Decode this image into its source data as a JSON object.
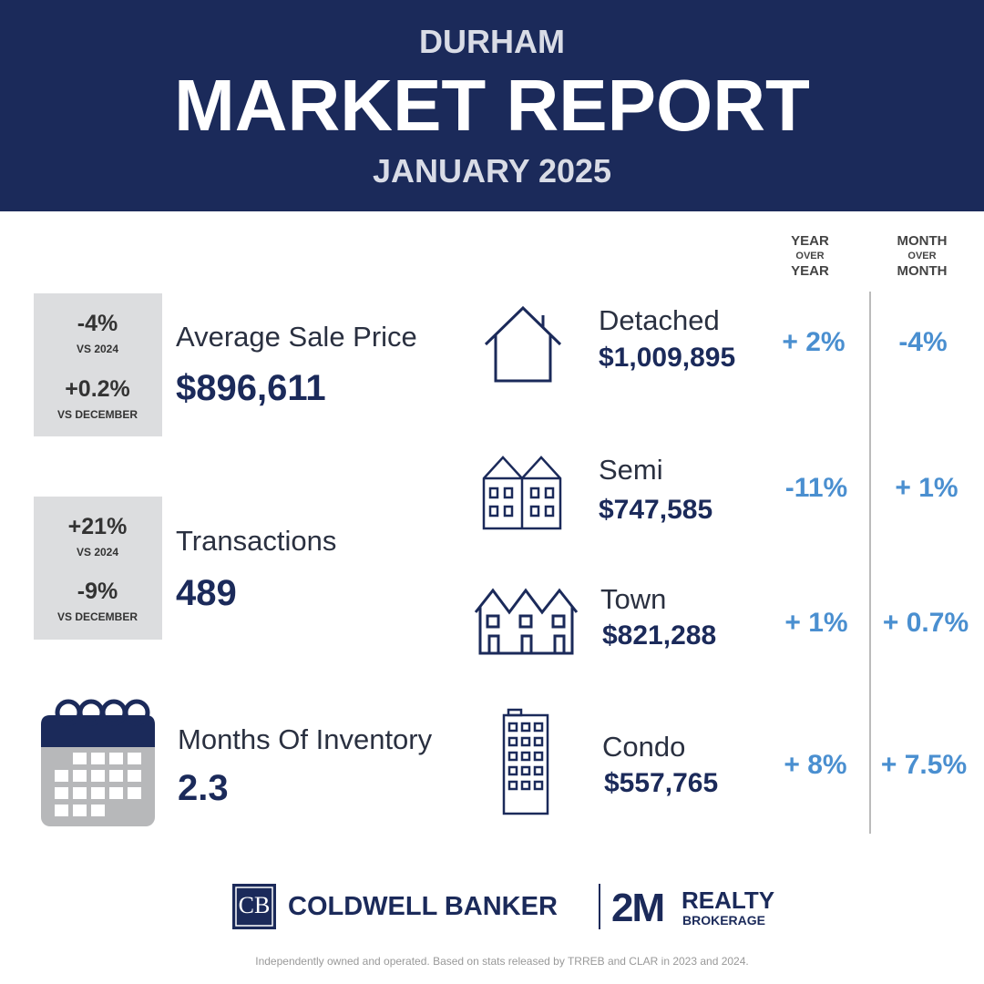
{
  "header": {
    "region": "DURHAM",
    "title": "MARKET REPORT",
    "period": "JANUARY 2025"
  },
  "columns": {
    "year_over_year": [
      "YEAR",
      "OVER",
      "YEAR"
    ],
    "month_over_month": [
      "MONTH",
      "OVER",
      "MONTH"
    ]
  },
  "summary": [
    {
      "label": "Average Sale Price",
      "value": "$896,611",
      "changes": [
        {
          "value": "-4%",
          "basis": "VS 2024"
        },
        {
          "value": "+0.2%",
          "basis": "VS DECEMBER"
        }
      ]
    },
    {
      "label": "Transactions",
      "value": "489",
      "changes": [
        {
          "value": "+21%",
          "basis": "VS 2024"
        },
        {
          "value": "-9%",
          "basis": "VS DECEMBER"
        }
      ]
    },
    {
      "label": "Months Of Inventory",
      "value": "2.3"
    }
  ],
  "property_types": [
    {
      "name": "Detached",
      "price": "$1,009,895",
      "year_over_year": "+ 2%",
      "month_over_month": "-4%"
    },
    {
      "name": "Semi",
      "price": "$747,585",
      "year_over_year": "-11%",
      "month_over_month": "+ 1%"
    },
    {
      "name": "Town",
      "price": "$821,288",
      "year_over_year": "+ 1%",
      "month_over_month": "+ 0.7%"
    },
    {
      "name": "Condo",
      "price": "$557,765",
      "year_over_year": "+ 8%",
      "month_over_month": "+ 7.5%"
    }
  ],
  "footer": {
    "logo_mark": "CB",
    "brand": "COLDWELL BANKER",
    "partner": "2M",
    "partner_line1": "REALTY",
    "partner_line2": "BROKERAGE",
    "disclaimer": "Independently owned and operated. Based on stats released by TRREB and CLAR  in 2023 and 2024."
  }
}
